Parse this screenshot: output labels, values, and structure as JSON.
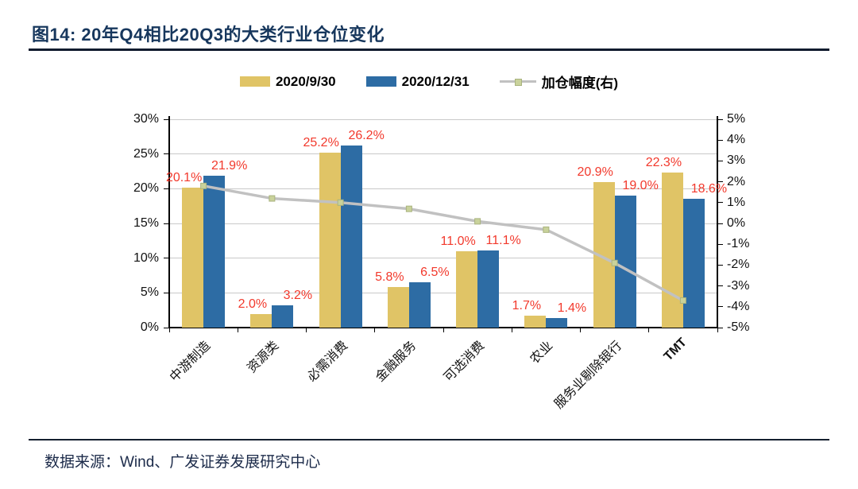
{
  "figure": {
    "title": "图14:  20年Q4相比20Q3的大类行业仓位变化",
    "source": "数据来源：Wind、广发证券发展研究中心"
  },
  "colors": {
    "bar_2020_09_30": "#E0C466",
    "bar_2020_12_31": "#2D6CA4",
    "line": "#C1C1C1",
    "line_marker": "#C9D29B",
    "data_label": "#F2392C",
    "grid": "#C9C9C9",
    "axis": "#000000",
    "title": "#17375D"
  },
  "chart_data": {
    "type": "bar",
    "subtype": "grouped-bars-with-line-on-secondary-axis",
    "title": "20年Q4相比20Q3的大类行业仓位变化",
    "categories": [
      "中游制造",
      "资源类",
      "必需消费",
      "金融服务",
      "可选消费",
      "农业",
      "服务业剔除银行",
      "TMT"
    ],
    "series": [
      {
        "name": "2020/9/30",
        "kind": "bar",
        "axis": "left",
        "color": "#E0C466",
        "values": [
          20.1,
          2.0,
          25.2,
          5.8,
          11.0,
          1.7,
          20.9,
          22.3
        ],
        "labels": [
          "20.1%",
          "2.0%",
          "25.2%",
          "5.8%",
          "11.0%",
          "1.7%",
          "20.9%",
          "22.3%"
        ]
      },
      {
        "name": "2020/12/31",
        "kind": "bar",
        "axis": "left",
        "color": "#2D6CA4",
        "values": [
          21.9,
          3.2,
          26.2,
          6.5,
          11.1,
          1.4,
          19.0,
          18.6
        ],
        "labels": [
          "21.9%",
          "3.2%",
          "26.2%",
          "6.5%",
          "11.1%",
          "1.4%",
          "19.0%",
          "18.6%"
        ]
      },
      {
        "name": "加仓幅度(右)",
        "kind": "line",
        "axis": "right",
        "color": "#C1C1C1",
        "values": [
          1.8,
          1.2,
          1.0,
          0.7,
          0.1,
          -0.3,
          -1.9,
          -3.7
        ]
      }
    ],
    "left_axis": {
      "min": 0,
      "max": 30,
      "step": 5,
      "ticks": [
        "30%",
        "25%",
        "20%",
        "15%",
        "10%",
        "5%",
        "0%"
      ]
    },
    "right_axis": {
      "min": -5,
      "max": 5,
      "step": 1,
      "ticks": [
        "5%",
        "4%",
        "3%",
        "2%",
        "1%",
        "0%",
        "-1%",
        "-2%",
        "-3%",
        "-4%",
        "-5%"
      ]
    },
    "grid": true,
    "legend_position": "top"
  }
}
